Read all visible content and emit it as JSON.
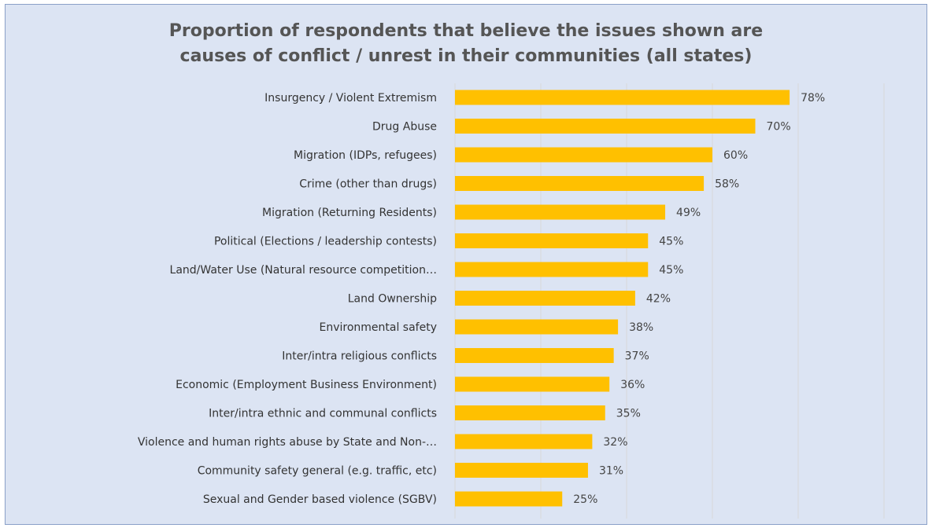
{
  "chart_data": {
    "type": "bar",
    "orientation": "horizontal",
    "title": "Proportion of respondents that believe the issues shown are\ncauses of conflict / unrest in their communities (all states)",
    "categories": [
      "Insurgency / Violent Extremism",
      "Drug Abuse",
      "Migration (IDPs, refugees)",
      "Crime (other than drugs)",
      "Migration (Returning Residents)",
      "Political (Elections / leadership contests)",
      "Land/Water Use (Natural resource competition…",
      "Land Ownership",
      "Environmental safety",
      "Inter/intra religious conflicts",
      "Economic (Employment Business Environment)",
      "Inter/intra ethnic and communal conflicts",
      "Violence and human rights abuse by State and Non-…",
      "Community safety general (e.g. traffic, etc)",
      "Sexual   and Gender based violence (SGBV)"
    ],
    "values": [
      78,
      70,
      60,
      58,
      49,
      45,
      45,
      42,
      38,
      37,
      36,
      35,
      32,
      31,
      25
    ],
    "value_labels": [
      "78%",
      "70%",
      "60%",
      "58%",
      "49%",
      "45%",
      "45%",
      "42%",
      "38%",
      "37%",
      "36%",
      "35%",
      "32%",
      "31%",
      "25%"
    ],
    "xlim": [
      0,
      100
    ],
    "grid": true,
    "legend": "none",
    "bar_color": "#ffc000",
    "grid_color": "#d9d9d9"
  }
}
